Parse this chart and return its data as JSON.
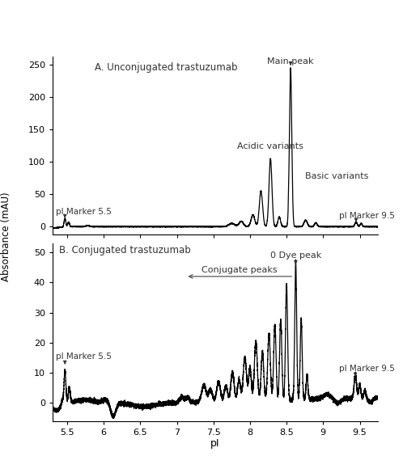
{
  "title_A": "A. Unconjugated trastuzumab",
  "title_B": "B. Conjugated trastuzumab",
  "xlabel": "pI",
  "ylabel": "Absorbance (mAU)",
  "xlim": [
    5.3,
    9.75
  ],
  "ylim_A": [
    -12,
    262
  ],
  "ylim_B": [
    -6,
    53
  ],
  "yticks_A": [
    0,
    50,
    100,
    150,
    200,
    250
  ],
  "yticks_B": [
    0,
    10,
    20,
    30,
    40,
    50
  ],
  "xticks": [
    5.5,
    6.0,
    6.5,
    7.0,
    7.5,
    8.0,
    8.5,
    9.0,
    9.5
  ],
  "xticklabels": [
    "5.5",
    "6",
    "6.5",
    "7",
    "7.5",
    "8",
    "8.5",
    "9",
    "9.5"
  ],
  "background_color": "#ffffff",
  "line_color": "#000000"
}
